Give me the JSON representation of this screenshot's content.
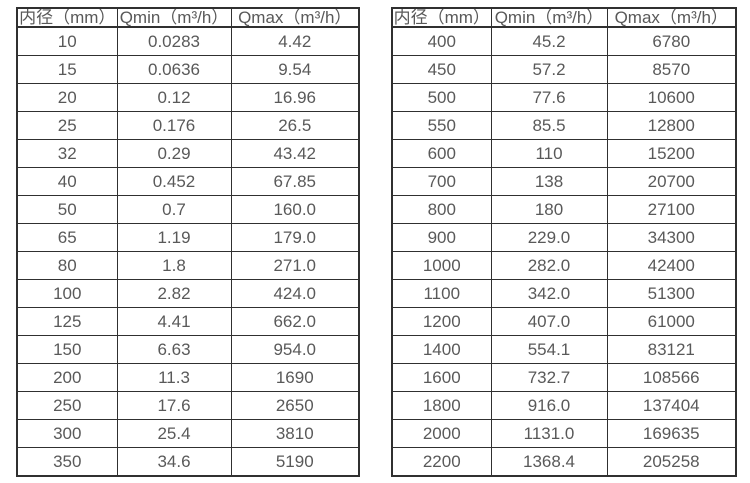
{
  "colors": {
    "border": "#303030",
    "text": "#595959",
    "background": "#ffffff"
  },
  "tables": [
    {
      "headers": [
        "内径（mm）",
        "Qmin（m³/h）",
        "Qmax（m³/h）"
      ],
      "rows": [
        [
          "10",
          "0.0283",
          "4.42"
        ],
        [
          "15",
          "0.0636",
          "9.54"
        ],
        [
          "20",
          "0.12",
          "16.96"
        ],
        [
          "25",
          "0.176",
          "26.5"
        ],
        [
          "32",
          "0.29",
          "43.42"
        ],
        [
          "40",
          "0.452",
          "67.85"
        ],
        [
          "50",
          "0.7",
          "160.0"
        ],
        [
          "65",
          "1.19",
          "179.0"
        ],
        [
          "80",
          "1.8",
          "271.0"
        ],
        [
          "100",
          "2.82",
          "424.0"
        ],
        [
          "125",
          "4.41",
          "662.0"
        ],
        [
          "150",
          "6.63",
          "954.0"
        ],
        [
          "200",
          "11.3",
          "1690"
        ],
        [
          "250",
          "17.6",
          "2650"
        ],
        [
          "300",
          "25.4",
          "3810"
        ],
        [
          "350",
          "34.6",
          "5190"
        ]
      ]
    },
    {
      "headers": [
        "内径（mm）",
        "Qmin（m³/h）",
        "Qmax（m³/h）"
      ],
      "rows": [
        [
          "400",
          "45.2",
          "6780"
        ],
        [
          "450",
          "57.2",
          "8570"
        ],
        [
          "500",
          "77.6",
          "10600"
        ],
        [
          "550",
          "85.5",
          "12800"
        ],
        [
          "600",
          "110",
          "15200"
        ],
        [
          "700",
          "138",
          "20700"
        ],
        [
          "800",
          "180",
          "27100"
        ],
        [
          "900",
          "229.0",
          "34300"
        ],
        [
          "1000",
          "282.0",
          "42400"
        ],
        [
          "1100",
          "342.0",
          "51300"
        ],
        [
          "1200",
          "407.0",
          "61000"
        ],
        [
          "1400",
          "554.1",
          "83121"
        ],
        [
          "1600",
          "732.7",
          "108566"
        ],
        [
          "1800",
          "916.0",
          "137404"
        ],
        [
          "2000",
          "1131.0",
          "169635"
        ],
        [
          "2200",
          "1368.4",
          "205258"
        ]
      ]
    }
  ]
}
